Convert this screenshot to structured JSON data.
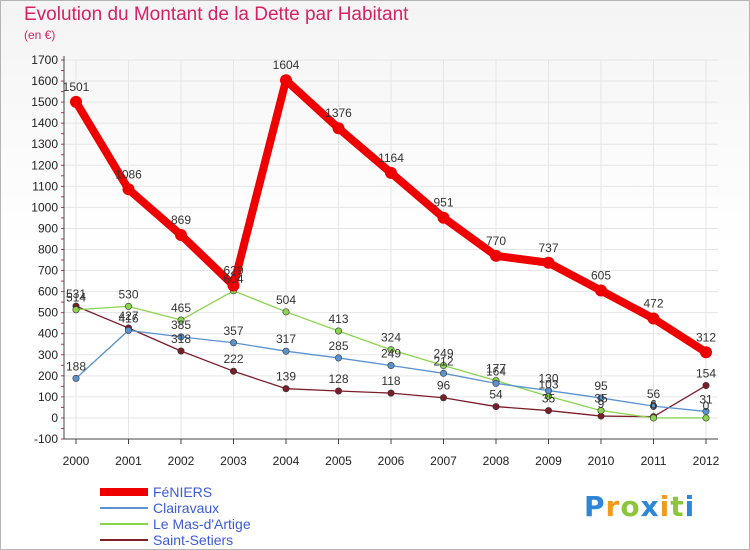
{
  "chart_data": {
    "type": "line",
    "title": "Evolution du Montant de la Dette par Habitant",
    "unit_label": "(en €)",
    "categories": [
      "2000",
      "2001",
      "2002",
      "2003",
      "2004",
      "2005",
      "2006",
      "2007",
      "2008",
      "2009",
      "2010",
      "2011",
      "2012"
    ],
    "ylim": [
      -100,
      1700
    ],
    "yticks": [
      -100,
      0,
      100,
      200,
      300,
      400,
      500,
      600,
      700,
      800,
      900,
      1000,
      1100,
      1200,
      1300,
      1400,
      1500,
      1600,
      1700
    ],
    "grid": true,
    "legend_position": "bottom-left",
    "series": [
      {
        "name": "FéNIERS",
        "color": "#ef0000",
        "values": [
          1501,
          1086,
          869,
          629,
          1604,
          1376,
          1164,
          951,
          770,
          737,
          605,
          472,
          312
        ]
      },
      {
        "name": "Clairavaux",
        "color": "#5b93cf",
        "values": [
          188,
          416,
          385,
          357,
          317,
          285,
          249,
          212,
          164,
          130,
          95,
          56,
          31
        ]
      },
      {
        "name": "Le Mas-d'Artige",
        "color": "#8bd44e",
        "values": [
          514,
          530,
          465,
          604,
          504,
          413,
          324,
          249,
          177,
          103,
          35,
          0,
          0
        ]
      },
      {
        "name": "Saint-Setiers",
        "color": "#7a1e2a",
        "values": [
          531,
          427,
          318,
          222,
          139,
          128,
          118,
          96,
          54,
          35,
          9,
          6,
          154
        ]
      }
    ],
    "data_labels": [
      [
        "1501",
        "1086",
        "869",
        "629",
        "1604",
        "1376",
        "1164",
        "951",
        "770",
        "737",
        "605",
        "472",
        "312"
      ],
      [
        "188",
        "416",
        "385",
        "357",
        "317",
        "285",
        "249",
        "212",
        "164",
        "130",
        "95",
        "56",
        "31"
      ],
      [
        "514",
        "530",
        "465",
        "604",
        "504",
        "413",
        "324",
        "249",
        "177",
        "103",
        "35",
        "0",
        "0"
      ],
      [
        "531",
        "427",
        "318",
        "222",
        "139",
        "128",
        "118",
        "96",
        "54",
        "35",
        "9",
        "6",
        "154"
      ]
    ]
  },
  "brand": {
    "letters": [
      "P",
      "r",
      "o",
      "x",
      "i",
      "t",
      "i"
    ],
    "colors": [
      "#2e86d6",
      "#f29a1b",
      "#8cc63e",
      "#2e86d6",
      "#f29a1b",
      "#8cc63e",
      "#2e86d6"
    ]
  }
}
